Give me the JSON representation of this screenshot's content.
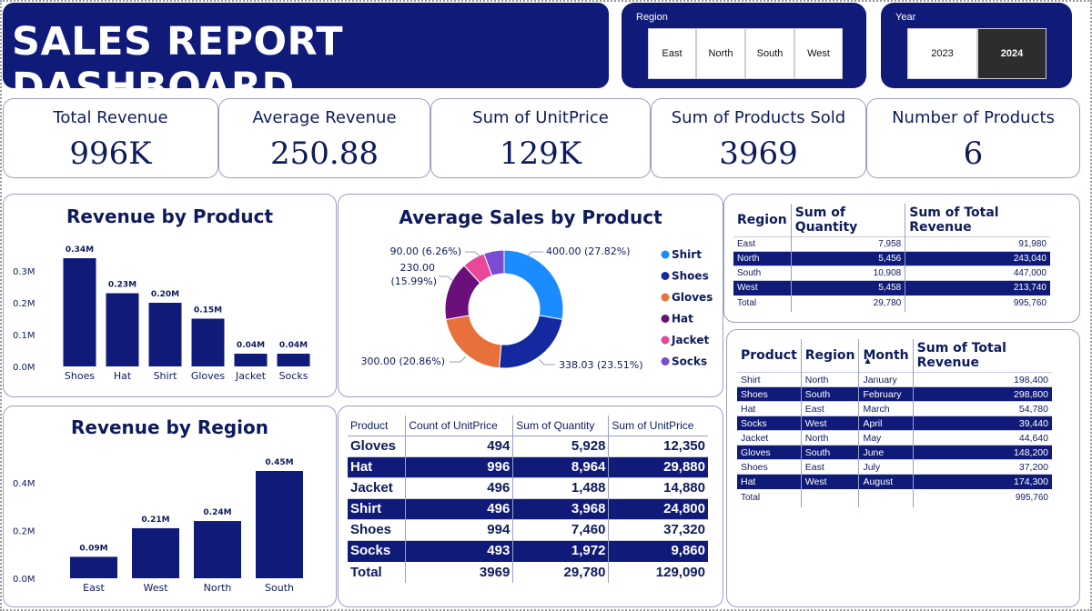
{
  "header": {
    "title": "SALES REPORT DASHBOARD",
    "region_label": "Region",
    "region_options": [
      "East",
      "North",
      "South",
      "West"
    ],
    "year_label": "Year",
    "year_options": [
      "2023",
      "2024"
    ],
    "year_selected": "2024"
  },
  "kpis": [
    {
      "title": "Total Revenue",
      "value": "996K"
    },
    {
      "title": "Average Revenue",
      "value": "250.88"
    },
    {
      "title": "Sum of UnitPrice",
      "value": "129K"
    },
    {
      "title": "Sum of Products Sold",
      "value": "3969"
    },
    {
      "title": "Number of Products",
      "value": "6"
    }
  ],
  "chart_data": [
    {
      "id": "revenue_by_product",
      "type": "bar",
      "title": "Revenue by Product",
      "categories": [
        "Shoes",
        "Hat",
        "Shirt",
        "Gloves",
        "Jacket",
        "Socks"
      ],
      "values": [
        0.34,
        0.23,
        0.2,
        0.15,
        0.04,
        0.04
      ],
      "data_labels": [
        "0.34M",
        "0.23M",
        "0.20M",
        "0.15M",
        "0.04M",
        "0.04M"
      ],
      "yticks": [
        "0.0M",
        "0.1M",
        "0.2M",
        "0.3M"
      ],
      "ytick_values": [
        0,
        0.1,
        0.2,
        0.3
      ],
      "ylim": [
        0,
        0.34
      ],
      "color": "#101a78"
    },
    {
      "id": "average_sales_by_product",
      "type": "pie",
      "title": "Average Sales by Product",
      "categories": [
        "Shirt",
        "Shoes",
        "Gloves",
        "Hat",
        "Jacket",
        "Socks"
      ],
      "values": [
        400.0,
        338.03,
        300.0,
        230.0,
        90.0,
        80.0
      ],
      "labels": [
        "400.00 (27.82%)",
        "338.03 (23.51%)",
        "300.00 (20.86%)",
        "230.00 (15.99%)",
        "90.00 (6.26%)",
        ""
      ],
      "colors": [
        "#1a8cff",
        "#1428a0",
        "#e8703a",
        "#6b0f7a",
        "#e8479a",
        "#7b4bd1"
      ]
    },
    {
      "id": "revenue_by_region",
      "type": "bar",
      "title": "Revenue by Region",
      "categories": [
        "East",
        "West",
        "North",
        "South"
      ],
      "values": [
        0.09,
        0.21,
        0.24,
        0.45
      ],
      "data_labels": [
        "0.09M",
        "0.21M",
        "0.24M",
        "0.45M"
      ],
      "yticks": [
        "0.0M",
        "0.2M",
        "0.4M"
      ],
      "ytick_values": [
        0,
        0.2,
        0.4
      ],
      "ylim": [
        0,
        0.45
      ],
      "color": "#101a78"
    }
  ],
  "region_table": {
    "headers": [
      "Region",
      "Sum of Quantity",
      "Sum of Total Revenue"
    ],
    "rows": [
      [
        "East",
        "7,958",
        "91,980"
      ],
      [
        "North",
        "5,456",
        "243,040"
      ],
      [
        "South",
        "10,908",
        "447,000"
      ],
      [
        "West",
        "5,458",
        "213,740"
      ]
    ],
    "total": [
      "Total",
      "29,780",
      "995,760"
    ]
  },
  "month_table": {
    "headers": [
      "Product",
      "Region",
      "Month",
      "Sum of Total Revenue"
    ],
    "sort_indicator": "▲",
    "rows": [
      [
        "Shirt",
        "North",
        "January",
        "198,400"
      ],
      [
        "Shoes",
        "South",
        "February",
        "298,800"
      ],
      [
        "Hat",
        "East",
        "March",
        "54,780"
      ],
      [
        "Socks",
        "West",
        "April",
        "39,440"
      ],
      [
        "Jacket",
        "North",
        "May",
        "44,640"
      ],
      [
        "Gloves",
        "South",
        "June",
        "148,200"
      ],
      [
        "Shoes",
        "East",
        "July",
        "37,200"
      ],
      [
        "Hat",
        "West",
        "August",
        "174,300"
      ]
    ],
    "total": [
      "Total",
      "",
      "",
      "995,760"
    ]
  },
  "product_table": {
    "headers": [
      "Product",
      "Count of UnitPrice",
      "Sum of Quantity",
      "Sum of UnitPrice"
    ],
    "rows": [
      [
        "Gloves",
        "494",
        "5,928",
        "12,350"
      ],
      [
        "Hat",
        "996",
        "8,964",
        "29,880"
      ],
      [
        "Jacket",
        "496",
        "1,488",
        "14,880"
      ],
      [
        "Shirt",
        "496",
        "3,968",
        "24,800"
      ],
      [
        "Shoes",
        "994",
        "7,460",
        "37,320"
      ],
      [
        "Socks",
        "493",
        "1,972",
        "9,860"
      ]
    ],
    "total": [
      "Total",
      "3969",
      "29,780",
      "129,090"
    ]
  }
}
